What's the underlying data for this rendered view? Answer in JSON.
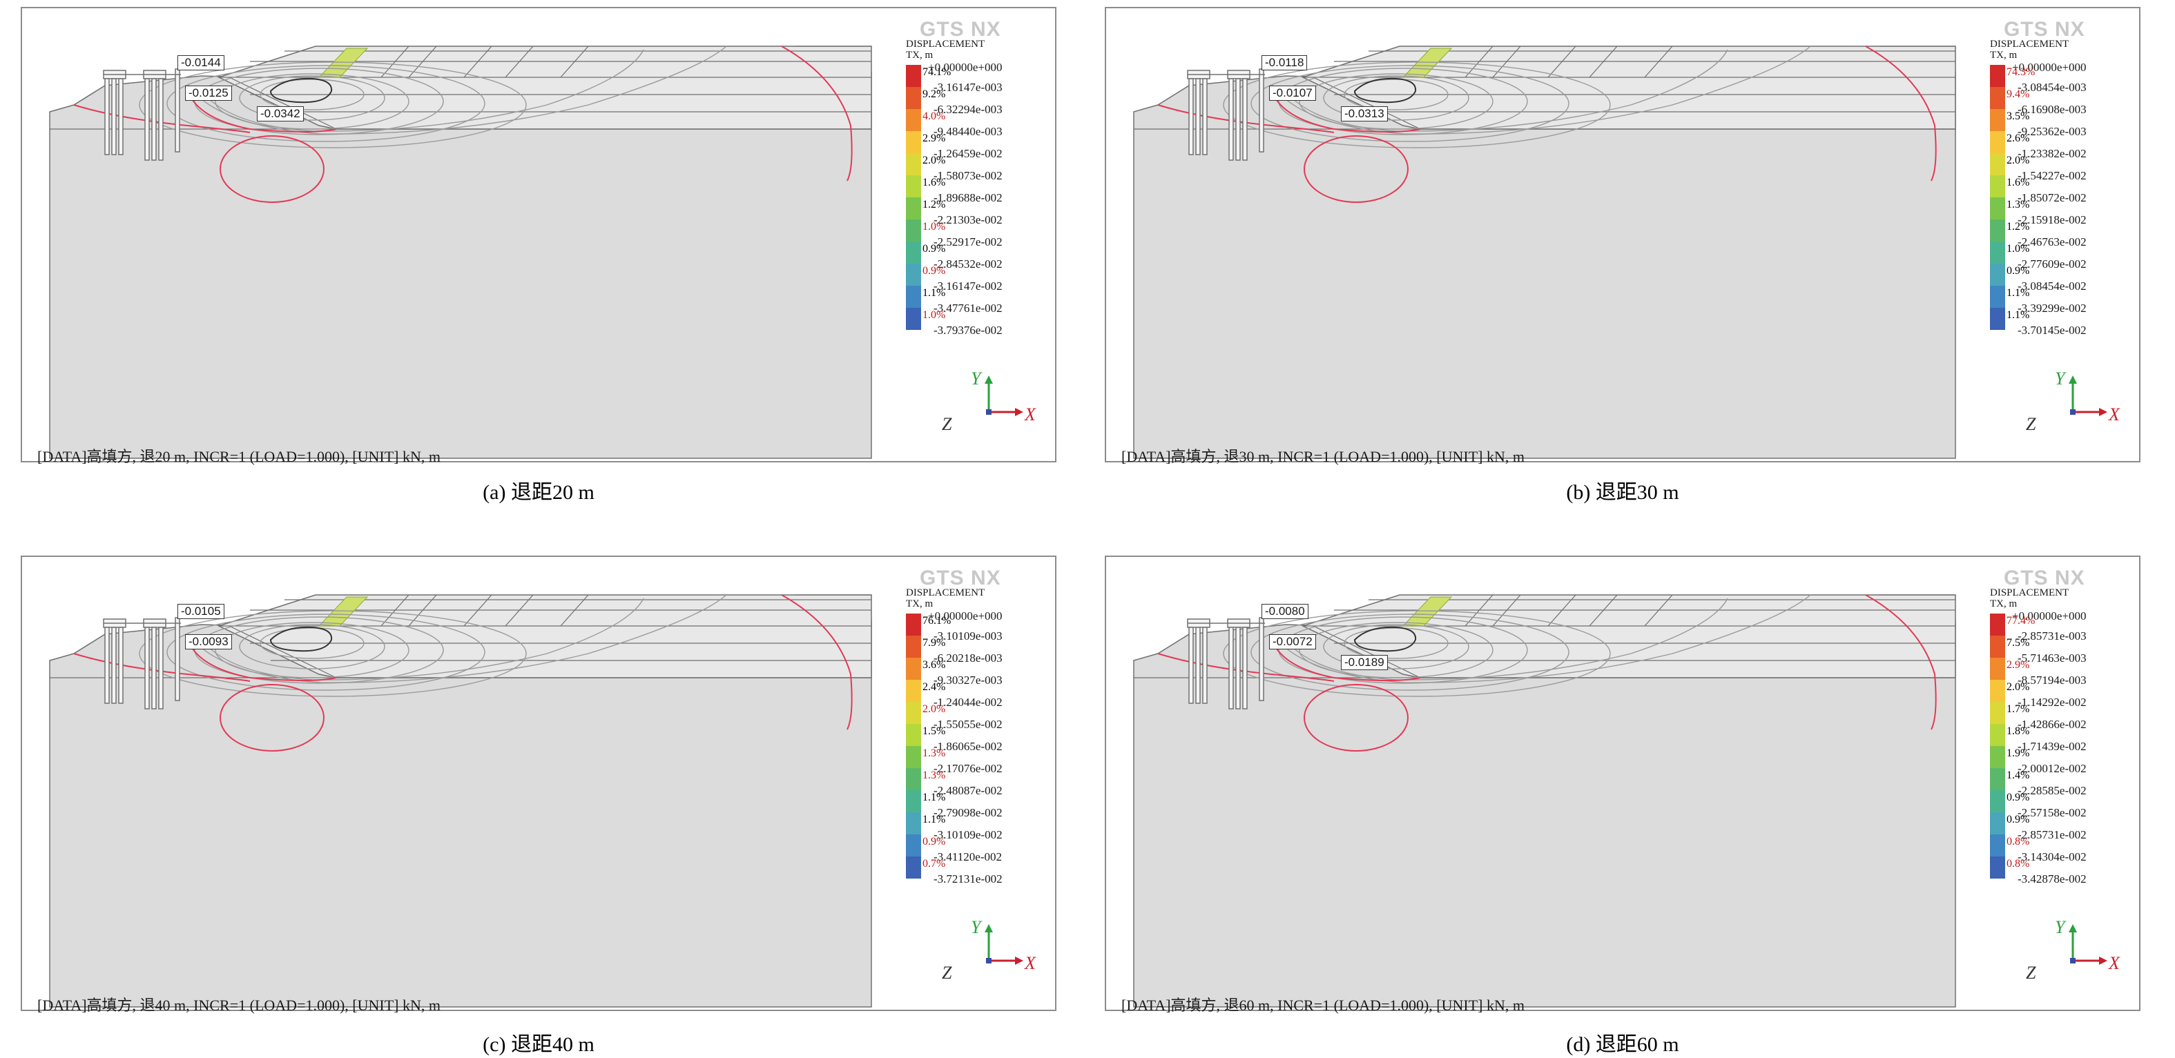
{
  "common": {
    "logo": "GTS NX",
    "legend_title_line1": "DISPLACEMENT",
    "legend_title_line2": "TX, m",
    "legend_top_value": "+0.00000e+000",
    "axis_x": "X",
    "axis_y": "Y",
    "axis_z": "Z",
    "colors": {
      "legend": [
        "#d42a2a",
        "#e4582a",
        "#f08a2c",
        "#f6c53a",
        "#dcd83a",
        "#b5d83c",
        "#7cc54c",
        "#5bb86a",
        "#4ab491",
        "#4aa6b8",
        "#3f86c2",
        "#3c63b4",
        "#2e3f96"
      ],
      "contour_red": "#e23a55",
      "contour_gray": "#9a9a9a",
      "soil": "#dcdcdc"
    }
  },
  "panels": [
    {
      "caption": "(a) 退距20 m",
      "footer": "[DATA]高填方, 退20 m, INCR=1 (LOAD=1.000), [UNIT] kN, m",
      "tags": [
        "-0.0144",
        "-0.0125",
        "-0.0342"
      ],
      "legend": [
        {
          "pct": "74.1%",
          "red": false,
          "value": "-3.16147e-003"
        },
        {
          "pct": "9.2%",
          "red": false,
          "value": "-6.32294e-003"
        },
        {
          "pct": "4.0%",
          "red": true,
          "value": "-9.48440e-003"
        },
        {
          "pct": "2.9%",
          "red": false,
          "value": "-1.26459e-002"
        },
        {
          "pct": "2.0%",
          "red": false,
          "value": "-1.58073e-002"
        },
        {
          "pct": "1.6%",
          "red": false,
          "value": "-1.89688e-002"
        },
        {
          "pct": "1.2%",
          "red": false,
          "value": "-2.21303e-002"
        },
        {
          "pct": "1.0%",
          "red": true,
          "value": "-2.52917e-002"
        },
        {
          "pct": "0.9%",
          "red": false,
          "value": "-2.84532e-002"
        },
        {
          "pct": "0.9%",
          "red": true,
          "value": "-3.16147e-002"
        },
        {
          "pct": "1.1%",
          "red": false,
          "value": "-3.47761e-002"
        },
        {
          "pct": "1.0%",
          "red": true,
          "value": "-3.79376e-002"
        }
      ]
    },
    {
      "caption": "(b) 退距30 m",
      "footer": "[DATA]高填方, 退30 m, INCR=1 (LOAD=1.000), [UNIT] kN, m",
      "tags": [
        "-0.0118",
        "-0.0107",
        "-0.0313"
      ],
      "legend": [
        {
          "pct": "74.3%",
          "red": true,
          "value": "-3.08454e-003"
        },
        {
          "pct": "9.4%",
          "red": true,
          "value": "-6.16908e-003"
        },
        {
          "pct": "3.5%",
          "red": false,
          "value": "-9.25362e-003"
        },
        {
          "pct": "2.6%",
          "red": false,
          "value": "-1.23382e-002"
        },
        {
          "pct": "2.0%",
          "red": false,
          "value": "-1.54227e-002"
        },
        {
          "pct": "1.6%",
          "red": false,
          "value": "-1.85072e-002"
        },
        {
          "pct": "1.3%",
          "red": false,
          "value": "-2.15918e-002"
        },
        {
          "pct": "1.2%",
          "red": false,
          "value": "-2.46763e-002"
        },
        {
          "pct": "1.0%",
          "red": false,
          "value": "-2.77609e-002"
        },
        {
          "pct": "0.9%",
          "red": false,
          "value": "-3.08454e-002"
        },
        {
          "pct": "1.1%",
          "red": false,
          "value": "-3.39299e-002"
        },
        {
          "pct": "1.1%",
          "red": false,
          "value": "-3.70145e-002"
        }
      ]
    },
    {
      "caption": "(c) 退距40 m",
      "footer": "[DATA]高填方, 退40 m, INCR=1 (LOAD=1.000), [UNIT] kN, m",
      "tags": [
        "-0.0105",
        "-0.0093",
        ""
      ],
      "legend": [
        {
          "pct": "76.1%",
          "red": false,
          "value": "-3.10109e-003"
        },
        {
          "pct": "7.9%",
          "red": false,
          "value": "-6.20218e-003"
        },
        {
          "pct": "3.6%",
          "red": false,
          "value": "-9.30327e-003"
        },
        {
          "pct": "2.4%",
          "red": false,
          "value": "-1.24044e-002"
        },
        {
          "pct": "2.0%",
          "red": true,
          "value": "-1.55055e-002"
        },
        {
          "pct": "1.5%",
          "red": false,
          "value": "-1.86065e-002"
        },
        {
          "pct": "1.3%",
          "red": true,
          "value": "-2.17076e-002"
        },
        {
          "pct": "1.3%",
          "red": true,
          "value": "-2.48087e-002"
        },
        {
          "pct": "1.1%",
          "red": false,
          "value": "-2.79098e-002"
        },
        {
          "pct": "1.1%",
          "red": false,
          "value": "-3.10109e-002"
        },
        {
          "pct": "0.9%",
          "red": true,
          "value": "-3.41120e-002"
        },
        {
          "pct": "0.7%",
          "red": true,
          "value": "-3.72131e-002"
        }
      ]
    },
    {
      "caption": "(d) 退距60 m",
      "footer": "[DATA]高填方, 退60 m, INCR=1 (LOAD=1.000), [UNIT] kN, m",
      "tags": [
        "-0.0080",
        "-0.0072",
        "-0.0189"
      ],
      "legend": [
        {
          "pct": "77.4%",
          "red": true,
          "value": "-2.85731e-003"
        },
        {
          "pct": "7.5%",
          "red": false,
          "value": "-5.71463e-003"
        },
        {
          "pct": "2.9%",
          "red": true,
          "value": "-8.57194e-003"
        },
        {
          "pct": "2.0%",
          "red": false,
          "value": "-1.14292e-002"
        },
        {
          "pct": "1.7%",
          "red": false,
          "value": "-1.42866e-002"
        },
        {
          "pct": "1.8%",
          "red": false,
          "value": "-1.71439e-002"
        },
        {
          "pct": "1.9%",
          "red": false,
          "value": "-2.00012e-002"
        },
        {
          "pct": "1.4%",
          "red": false,
          "value": "-2.28585e-002"
        },
        {
          "pct": "0.9%",
          "red": false,
          "value": "-2.57158e-002"
        },
        {
          "pct": "0.9%",
          "red": false,
          "value": "-2.85731e-002"
        },
        {
          "pct": "0.8%",
          "red": true,
          "value": "-3.14304e-002"
        },
        {
          "pct": "0.8%",
          "red": true,
          "value": "-3.42878e-002"
        }
      ]
    }
  ]
}
